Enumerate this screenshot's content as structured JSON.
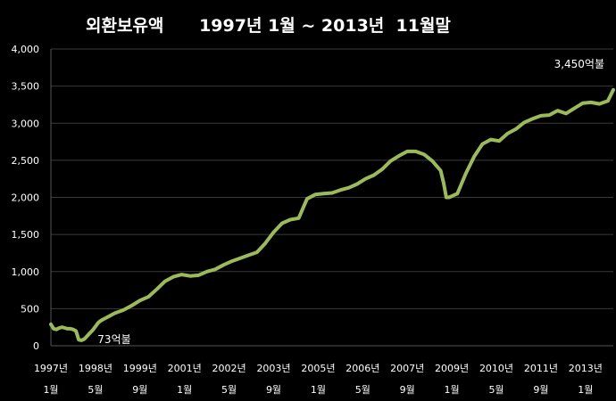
{
  "chart_data": {
    "type": "line",
    "title": "외환보유액      1997년 1월 ~ 2013년  11월말",
    "ylim": [
      0,
      4000
    ],
    "yticks": [
      0,
      500,
      1000,
      1500,
      2000,
      2500,
      3000,
      3500,
      4000
    ],
    "ytick_labels": [
      "0",
      "500",
      "1,000",
      "1,500",
      "2,000",
      "2,500",
      "3,000",
      "3,500",
      "4,000"
    ],
    "xlim": [
      "1997-01",
      "2013-11"
    ],
    "xticks": [
      {
        "date": "1997-01",
        "year": "1997년",
        "month": "1월"
      },
      {
        "date": "1998-05",
        "year": "1998년",
        "month": "5월"
      },
      {
        "date": "1999-09",
        "year": "1999년",
        "month": "9월"
      },
      {
        "date": "2001-01",
        "year": "2001년",
        "month": "1월"
      },
      {
        "date": "2002-05",
        "year": "2002년",
        "month": "5월"
      },
      {
        "date": "2003-09",
        "year": "2003년",
        "month": "9월"
      },
      {
        "date": "2005-01",
        "year": "2005년",
        "month": "1월"
      },
      {
        "date": "2006-05",
        "year": "2006년",
        "month": "5월"
      },
      {
        "date": "2007-09",
        "year": "2007년",
        "month": "9월"
      },
      {
        "date": "2009-01",
        "year": "2009년",
        "month": "1월"
      },
      {
        "date": "2010-05",
        "year": "2010년",
        "month": "5월"
      },
      {
        "date": "2011-09",
        "year": "2011년",
        "month": "9월"
      },
      {
        "date": "2013-01",
        "year": "2013년",
        "month": "1월"
      }
    ],
    "grid": true,
    "annotations": [
      {
        "text": "73억불",
        "x": "1997-12",
        "y": 73
      },
      {
        "text": "3,450억불",
        "x": "2013-11",
        "y": 3450
      }
    ],
    "series": [
      {
        "color": "#9bbb59",
        "x": [
          "1997-01",
          "1997-02",
          "1997-03",
          "1997-04",
          "1997-05",
          "1997-06",
          "1997-07",
          "1997-08",
          "1997-09",
          "1997-10",
          "1997-11",
          "1997-12",
          "1998-01",
          "1998-02",
          "1998-03",
          "1998-04",
          "1998-05",
          "1998-06",
          "1998-07",
          "1998-08",
          "1998-09",
          "1998-10",
          "1998-11",
          "1998-12",
          "1999-03",
          "1999-06",
          "1999-09",
          "1999-12",
          "2000-03",
          "2000-06",
          "2000-09",
          "2000-12",
          "2001-03",
          "2001-06",
          "2001-09",
          "2001-12",
          "2002-03",
          "2002-06",
          "2002-09",
          "2002-12",
          "2003-03",
          "2003-06",
          "2003-09",
          "2003-12",
          "2004-03",
          "2004-06",
          "2004-09",
          "2004-12",
          "2005-03",
          "2005-06",
          "2005-09",
          "2005-12",
          "2006-03",
          "2006-06",
          "2006-09",
          "2006-12",
          "2007-03",
          "2007-06",
          "2007-09",
          "2007-12",
          "2008-03",
          "2008-06",
          "2008-09",
          "2008-10",
          "2008-11",
          "2008-12",
          "2009-03",
          "2009-06",
          "2009-09",
          "2009-12",
          "2010-03",
          "2010-06",
          "2010-09",
          "2010-12",
          "2011-03",
          "2011-06",
          "2011-09",
          "2011-12",
          "2012-03",
          "2012-06",
          "2012-09",
          "2012-12",
          "2013-03",
          "2013-06",
          "2013-09",
          "2013-11"
        ],
        "values": [
          290,
          230,
          220,
          240,
          250,
          240,
          230,
          230,
          220,
          200,
          80,
          73,
          90,
          130,
          170,
          210,
          260,
          310,
          340,
          360,
          380,
          400,
          420,
          440,
          480,
          540,
          610,
          660,
          760,
          870,
          930,
          960,
          940,
          950,
          1000,
          1030,
          1090,
          1140,
          1180,
          1220,
          1260,
          1380,
          1530,
          1650,
          1700,
          1720,
          1980,
          2040,
          2050,
          2060,
          2100,
          2130,
          2180,
          2250,
          2300,
          2380,
          2490,
          2560,
          2620,
          2620,
          2580,
          2490,
          2360,
          2200,
          2000,
          2000,
          2050,
          2320,
          2550,
          2720,
          2780,
          2760,
          2860,
          2920,
          3010,
          3060,
          3100,
          3110,
          3170,
          3130,
          3200,
          3270,
          3280,
          3260,
          3300,
          3450
        ]
      }
    ]
  }
}
